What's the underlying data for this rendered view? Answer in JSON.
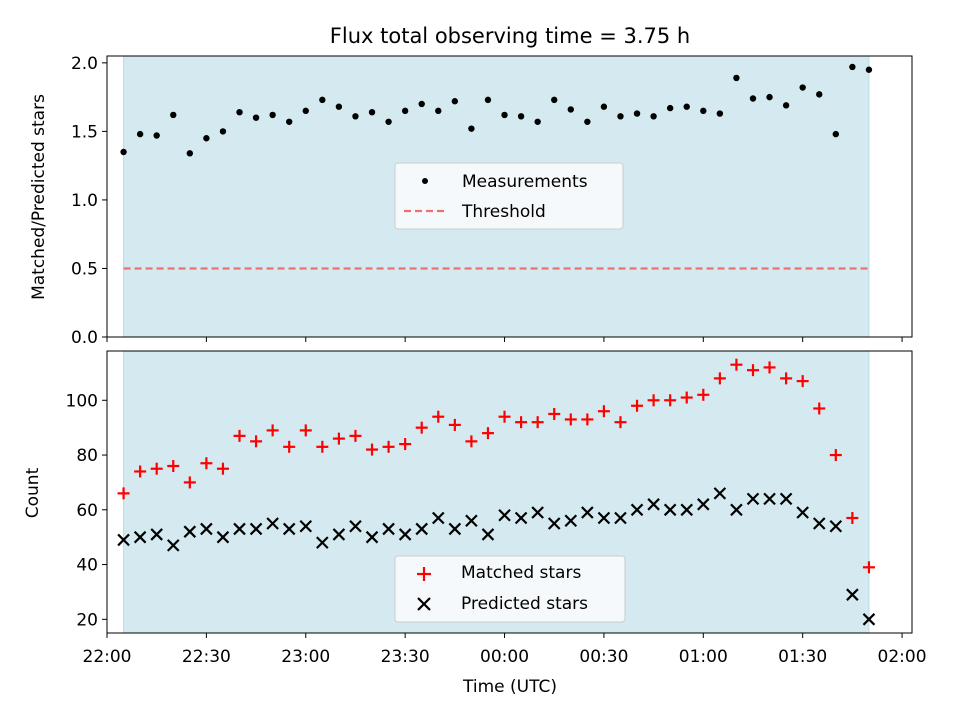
{
  "chart_data": [
    {
      "type": "scatter",
      "title": "Flux total observing time = 3.75 h",
      "xlabel": "",
      "ylabel": "Matched/Predicted stars",
      "ylim": [
        0.0,
        2.05
      ],
      "yticks": [
        0.0,
        0.5,
        1.0,
        1.5,
        2.0
      ],
      "ytick_labels": [
        "0.0",
        "0.5",
        "1.0",
        "1.5",
        "2.0"
      ],
      "observing_window": [
        "22:05",
        "01:50"
      ],
      "legend_placement": "center",
      "series": [
        {
          "name": "Measurements",
          "color": "#000000",
          "marker": "dot",
          "x": [
            "22:05",
            "22:10",
            "22:15",
            "22:20",
            "22:25",
            "22:30",
            "22:35",
            "22:40",
            "22:45",
            "22:50",
            "22:55",
            "23:00",
            "23:05",
            "23:10",
            "23:15",
            "23:20",
            "23:25",
            "23:30",
            "23:35",
            "23:40",
            "23:45",
            "23:50",
            "23:55",
            "00:00",
            "00:05",
            "00:10",
            "00:15",
            "00:20",
            "00:25",
            "00:30",
            "00:35",
            "00:40",
            "00:45",
            "00:50",
            "00:55",
            "01:00",
            "01:05",
            "01:10",
            "01:15",
            "01:20",
            "01:25",
            "01:30",
            "01:35",
            "01:40",
            "01:45",
            "01:50"
          ],
          "y": [
            1.35,
            1.48,
            1.47,
            1.62,
            1.34,
            1.45,
            1.5,
            1.64,
            1.6,
            1.62,
            1.57,
            1.65,
            1.73,
            1.68,
            1.61,
            1.64,
            1.57,
            1.65,
            1.7,
            1.65,
            1.72,
            1.52,
            1.73,
            1.62,
            1.61,
            1.57,
            1.73,
            1.66,
            1.57,
            1.68,
            1.61,
            1.63,
            1.61,
            1.67,
            1.68,
            1.65,
            1.63,
            1.89,
            1.74,
            1.75,
            1.69,
            1.82,
            1.77,
            1.48,
            1.97,
            1.95
          ]
        },
        {
          "name": "Threshold",
          "color": "#f07070",
          "style": "dashed",
          "x": [
            "22:05",
            "01:50"
          ],
          "y": [
            0.5,
            0.5
          ]
        }
      ]
    },
    {
      "type": "scatter",
      "title": "",
      "xlabel": "Time (UTC)",
      "ylabel": "Count",
      "ylim": [
        15,
        118
      ],
      "yticks": [
        20,
        40,
        60,
        80,
        100
      ],
      "ytick_labels": [
        "20",
        "40",
        "60",
        "80",
        "100"
      ],
      "xlim": [
        "22:00",
        "02:03"
      ],
      "xticks": [
        "22:00",
        "22:30",
        "23:00",
        "23:30",
        "00:00",
        "00:30",
        "01:00",
        "01:30",
        "02:00"
      ],
      "xtick_labels": [
        "22:00",
        "22:30",
        "23:00",
        "23:30",
        "00:00",
        "00:30",
        "01:00",
        "01:30",
        "02:00"
      ],
      "observing_window": [
        "22:05",
        "01:50"
      ],
      "legend_placement": "lower center",
      "series": [
        {
          "name": "Matched stars",
          "color": "#ff0000",
          "marker": "plus",
          "x": [
            "22:05",
            "22:10",
            "22:15",
            "22:20",
            "22:25",
            "22:30",
            "22:35",
            "22:40",
            "22:45",
            "22:50",
            "22:55",
            "23:00",
            "23:05",
            "23:10",
            "23:15",
            "23:20",
            "23:25",
            "23:30",
            "23:35",
            "23:40",
            "23:45",
            "23:50",
            "23:55",
            "00:00",
            "00:05",
            "00:10",
            "00:15",
            "00:20",
            "00:25",
            "00:30",
            "00:35",
            "00:40",
            "00:45",
            "00:50",
            "00:55",
            "01:00",
            "01:05",
            "01:10",
            "01:15",
            "01:20",
            "01:25",
            "01:30",
            "01:35",
            "01:40",
            "01:45",
            "01:50"
          ],
          "y": [
            66,
            74,
            75,
            76,
            70,
            77,
            75,
            87,
            85,
            89,
            83,
            89,
            83,
            86,
            87,
            82,
            83,
            84,
            90,
            94,
            91,
            85,
            88,
            94,
            92,
            92,
            95,
            93,
            93,
            96,
            92,
            98,
            100,
            100,
            101,
            102,
            108,
            113,
            111,
            112,
            108,
            107,
            97,
            80,
            57,
            39
          ]
        },
        {
          "name": "Predicted stars",
          "color": "#000000",
          "marker": "x",
          "x": [
            "22:05",
            "22:10",
            "22:15",
            "22:20",
            "22:25",
            "22:30",
            "22:35",
            "22:40",
            "22:45",
            "22:50",
            "22:55",
            "23:00",
            "23:05",
            "23:10",
            "23:15",
            "23:20",
            "23:25",
            "23:30",
            "23:35",
            "23:40",
            "23:45",
            "23:50",
            "23:55",
            "00:00",
            "00:05",
            "00:10",
            "00:15",
            "00:20",
            "00:25",
            "00:30",
            "00:35",
            "00:40",
            "00:45",
            "00:50",
            "00:55",
            "01:00",
            "01:05",
            "01:10",
            "01:15",
            "01:20",
            "01:25",
            "01:30",
            "01:35",
            "01:40",
            "01:45",
            "01:50"
          ],
          "y": [
            49,
            50,
            51,
            47,
            52,
            53,
            50,
            53,
            53,
            55,
            53,
            54,
            48,
            51,
            54,
            50,
            53,
            51,
            53,
            57,
            53,
            56,
            51,
            58,
            57,
            59,
            55,
            56,
            59,
            57,
            57,
            60,
            62,
            60,
            60,
            62,
            66,
            60,
            64,
            64,
            64,
            59,
            55,
            54,
            29,
            20
          ]
        }
      ]
    }
  ]
}
